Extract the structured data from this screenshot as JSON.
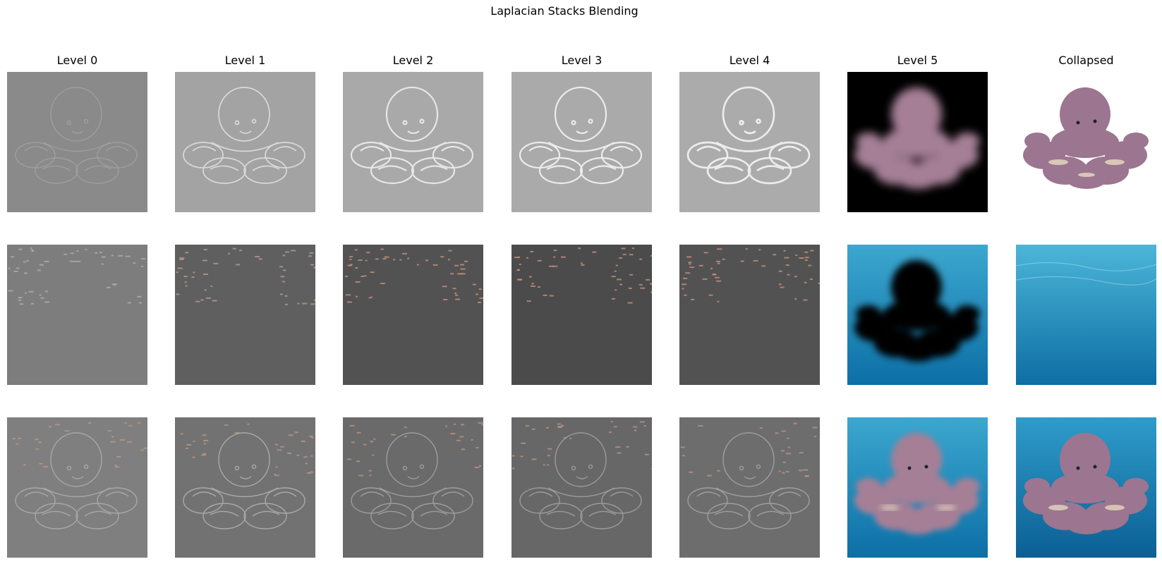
{
  "figure": {
    "title": "Laplacian Stacks Blending",
    "column_titles": [
      "Level 0",
      "Level 1",
      "Level 2",
      "Level 3",
      "Level 4",
      "Level 5",
      "Collapsed"
    ]
  },
  "rows": [
    {
      "name": "octopus-stack",
      "cells": [
        {
          "kind": "oct-detail",
          "bg": "#8a8a8a",
          "ink": "#a2a2a2",
          "sharp": 0
        },
        {
          "kind": "oct-detail",
          "bg": "#a3a3a3",
          "ink": "#d9d9d9",
          "sharp": 1
        },
        {
          "kind": "oct-detail",
          "bg": "#a9a9a9",
          "ink": "#e6e6e6",
          "sharp": 2
        },
        {
          "kind": "oct-detail",
          "bg": "#aaaaaa",
          "ink": "#ececec",
          "sharp": 2
        },
        {
          "kind": "oct-detail",
          "bg": "#ababab",
          "ink": "#ececec",
          "sharp": 3
        },
        {
          "kind": "oct-blur",
          "bg": "#000000",
          "fill": "#a57f96"
        },
        {
          "kind": "oct-full",
          "bg": "#ffffff",
          "fill": "#9c7590"
        }
      ]
    },
    {
      "name": "water-stack",
      "cells": [
        {
          "kind": "water-detail",
          "bg": "#7d7d7d",
          "ink": "#b5b5b5"
        },
        {
          "kind": "water-detail",
          "bg": "#5f5f5f",
          "ink": "#c8a296"
        },
        {
          "kind": "water-detail",
          "bg": "#525252",
          "ink": "#d99a82"
        },
        {
          "kind": "water-detail",
          "bg": "#4b4b4b",
          "ink": "#d99a82"
        },
        {
          "kind": "water-detail",
          "bg": "#525252",
          "ink": "#d99a82"
        },
        {
          "kind": "water-mask",
          "top": "#3ca7cf",
          "bottom": "#0c6fa6"
        },
        {
          "kind": "water-full",
          "top": "#4cb6d8",
          "bottom": "#0d6ea3"
        }
      ]
    },
    {
      "name": "blended-stack",
      "cells": [
        {
          "kind": "blend-detail",
          "bg": "#7f7f7f",
          "ink": "#a7a7a7"
        },
        {
          "kind": "blend-detail",
          "bg": "#727272",
          "ink": "#a9a9a9"
        },
        {
          "kind": "blend-detail",
          "bg": "#6a6a6a",
          "ink": "#9c9c9c"
        },
        {
          "kind": "blend-detail",
          "bg": "#676767",
          "ink": "#9a9a9a"
        },
        {
          "kind": "blend-detail",
          "bg": "#6d6d6d",
          "ink": "#9e9e9e"
        },
        {
          "kind": "blend-blur",
          "top": "#3ca7cf",
          "bottom": "#0c6fa6",
          "fill": "#a57f96"
        },
        {
          "kind": "blend-full",
          "top": "#2f9ccb",
          "bottom": "#0b5f93",
          "fill": "#9c7590"
        }
      ]
    }
  ]
}
